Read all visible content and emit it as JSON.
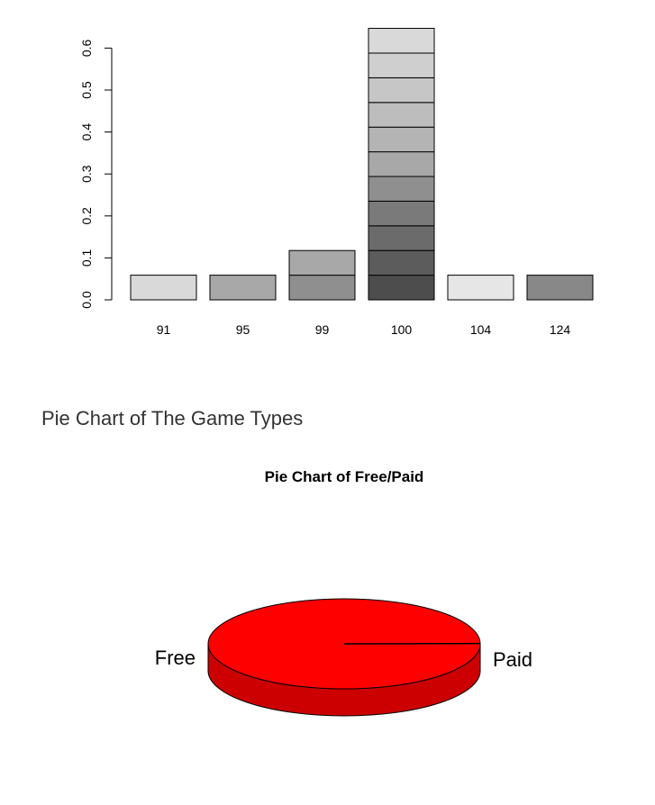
{
  "chart_data": [
    {
      "type": "bar",
      "title": "",
      "xlabel": "",
      "ylabel": "",
      "ylim": [
        0,
        0.62
      ],
      "y_ticks": [
        "0.0",
        "0.1",
        "0.2",
        "0.3",
        "0.4",
        "0.5",
        "0.6"
      ],
      "y_tick_values": [
        0.0,
        0.1,
        0.2,
        0.3,
        0.4,
        0.5,
        0.6
      ],
      "categories": [
        "91",
        "95",
        "99",
        "100",
        "104",
        "124"
      ],
      "values": [
        0.0588,
        0.0588,
        0.1176,
        0.6471,
        0.0588,
        0.0588
      ],
      "stack_segment_value": 0.0588,
      "segments": [
        [
          "#d9d9d9"
        ],
        [
          "#a8a8a8"
        ],
        [
          "#8f8f8f",
          "#a8a8a8"
        ],
        [
          "#4d4d4d",
          "#5c5c5c",
          "#6b6b6b",
          "#7a7a7a",
          "#8f8f8f",
          "#a8a8a8",
          "#b4b4b4",
          "#bdbdbd",
          "#c6c6c6",
          "#cfcfcf",
          "#d9d9d9"
        ],
        [
          "#e6e6e6"
        ],
        [
          "#888888"
        ]
      ]
    },
    {
      "type": "pie",
      "title": "Pie Chart of Free/Paid",
      "categories": [
        "Free",
        "Paid"
      ],
      "values": [
        0.999,
        0.001
      ],
      "style": "3d",
      "colors": {
        "top": "#ff0000",
        "side": "#cc0000",
        "edge": "#000000"
      }
    }
  ],
  "section": {
    "heading": "Pie Chart of The Game Types"
  }
}
